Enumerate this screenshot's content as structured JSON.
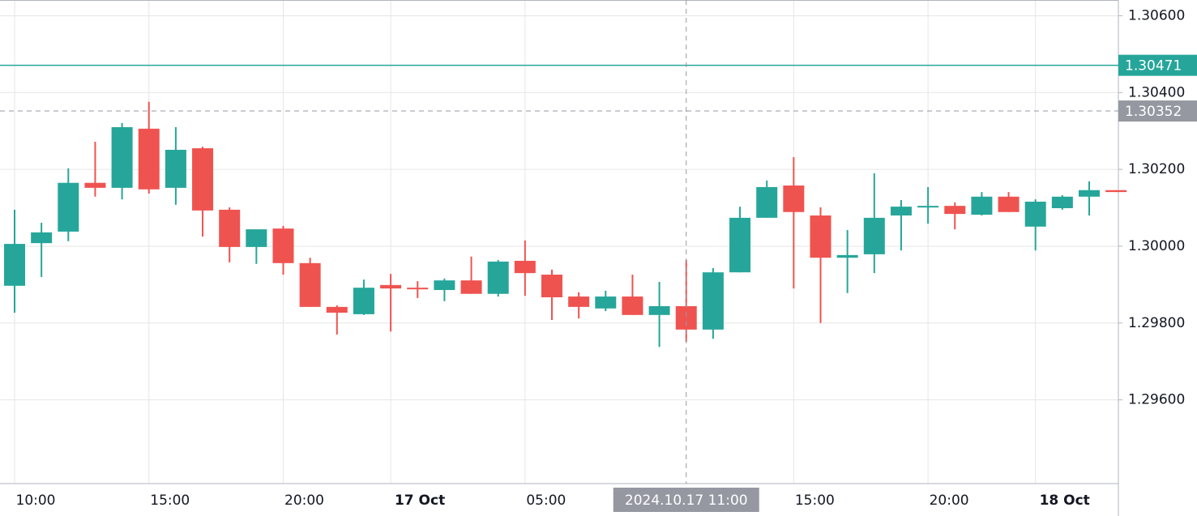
{
  "chart_data": {
    "type": "candlestick",
    "categories": [
      "10:00",
      null,
      null,
      null,
      null,
      "15:00",
      null,
      null,
      null,
      null,
      "20:00",
      null,
      null,
      null,
      "17 Oct",
      null,
      null,
      null,
      null,
      "05:00",
      null,
      null,
      null,
      null,
      null,
      "2024.10.17 11:00",
      null,
      null,
      null,
      "15:00",
      null,
      null,
      null,
      null,
      "20:00",
      null,
      null,
      null,
      "18 Oct",
      null,
      null,
      null
    ],
    "open": [
      1.29897,
      1.30008,
      1.30038,
      1.30165,
      1.30152,
      1.30306,
      1.30152,
      1.30255,
      1.30095,
      1.29998,
      1.30046,
      1.29956,
      1.29842,
      1.29823,
      1.29899,
      1.29892,
      1.29886,
      1.29911,
      1.29876,
      1.29962,
      1.29926,
      1.29869,
      1.29838,
      1.29869,
      1.29821,
      1.29844,
      1.29783,
      1.29932,
      1.30074,
      1.30158,
      1.3008,
      1.2997,
      1.29979,
      1.3008,
      1.30103,
      1.30105,
      1.30082,
      1.30129,
      1.30051,
      1.30099,
      1.30129,
      1.30146
    ],
    "high": [
      1.30095,
      1.30061,
      1.30203,
      1.30272,
      1.30321,
      1.30376,
      1.3031,
      1.30259,
      1.30101,
      1.30044,
      1.30053,
      1.2997,
      1.29846,
      1.29913,
      1.29928,
      1.29909,
      1.29916,
      1.29973,
      1.29964,
      1.30015,
      1.29939,
      1.2988,
      1.29884,
      1.29926,
      1.29907,
      1.29964,
      1.29943,
      1.30103,
      1.30171,
      1.30232,
      1.30101,
      1.30042,
      1.3019,
      1.3012,
      1.30154,
      1.30114,
      1.30141,
      1.30141,
      1.30122,
      1.30133,
      1.30169,
      1.30146
    ],
    "low": [
      1.29827,
      1.2992,
      1.30013,
      1.30129,
      1.30122,
      1.30137,
      1.30108,
      1.30025,
      1.29958,
      1.29954,
      1.29926,
      1.29842,
      1.2977,
      1.29821,
      1.29778,
      1.29865,
      1.29857,
      1.29876,
      1.29869,
      1.29871,
      1.29808,
      1.29812,
      1.29831,
      1.29821,
      1.29738,
      1.29751,
      1.29759,
      1.29932,
      1.30074,
      1.2989,
      1.298,
      1.29878,
      1.2993,
      1.29989,
      1.30059,
      1.30044,
      1.3008,
      1.30089,
      1.29989,
      1.30095,
      1.3008,
      1.30141
    ],
    "close": [
      1.30006,
      1.30036,
      1.30165,
      1.30152,
      1.3031,
      1.30148,
      1.30251,
      1.30093,
      1.29998,
      1.30044,
      1.29956,
      1.29842,
      1.29827,
      1.29892,
      1.2989,
      1.2989,
      1.29911,
      1.29876,
      1.2996,
      1.2993,
      1.29867,
      1.29842,
      1.29869,
      1.29821,
      1.29844,
      1.29783,
      1.29932,
      1.30074,
      1.30154,
      1.30089,
      1.2997,
      1.29977,
      1.30074,
      1.30103,
      1.30105,
      1.30084,
      1.30129,
      1.30089,
      1.30116,
      1.30129,
      1.30146,
      1.30141
    ],
    "up_color": "#26a69a",
    "down_color": "#ef5350",
    "ylim": [
      1.29382,
      1.30641
    ],
    "yticks": [
      {
        "value": 1.296,
        "label": "1.29600"
      },
      {
        "value": 1.298,
        "label": "1.29800"
      },
      {
        "value": 1.3,
        "label": "1.30000"
      },
      {
        "value": 1.302,
        "label": "1.30200"
      },
      {
        "value": 1.304,
        "label": "1.30400"
      },
      {
        "value": 1.306,
        "label": "1.30600"
      }
    ],
    "grid": true,
    "price_line": {
      "value": 1.30471,
      "color": "#26a69a"
    },
    "crosshair": {
      "x": 25,
      "y": 1.30352
    }
  }
}
